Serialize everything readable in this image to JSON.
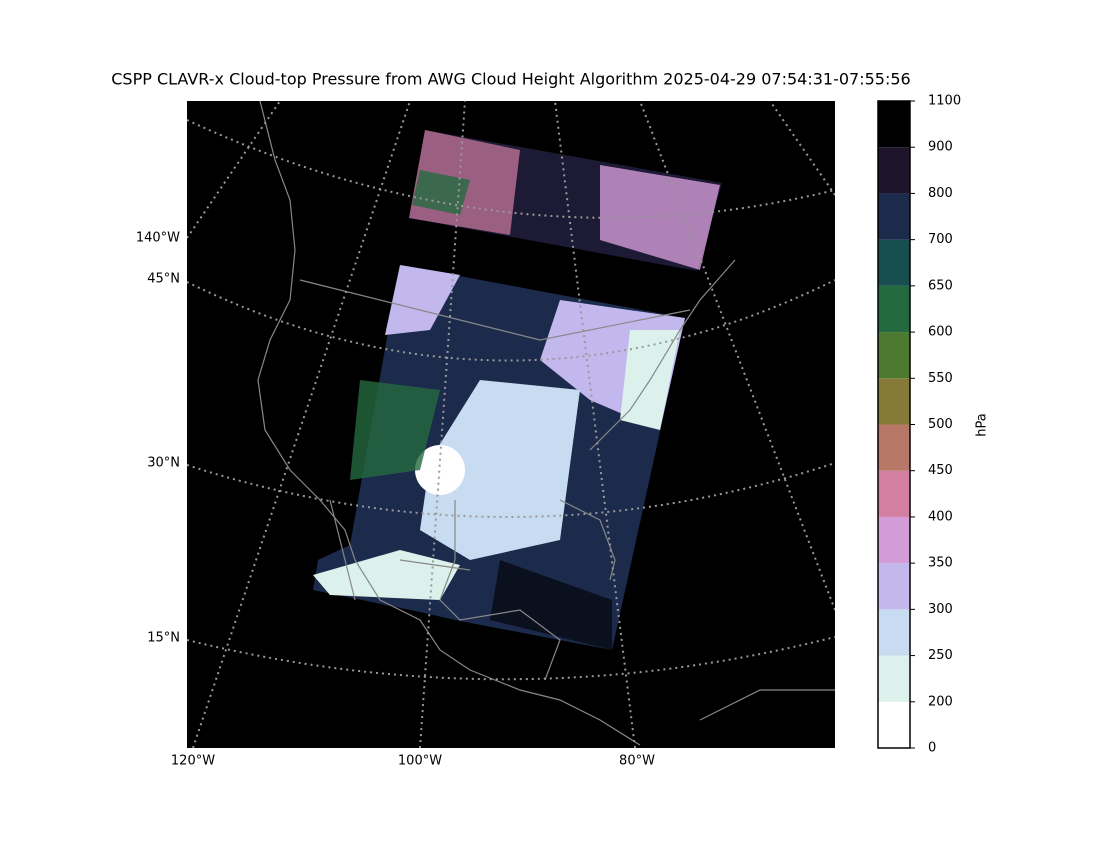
{
  "title": "CSPP CLAVR-x Cloud-top Pressure from AWG Cloud Height Algorithm 2025-04-29 07:54:31-07:55:56",
  "map": {
    "lon_labels": [
      "140°W",
      "120°W",
      "100°W",
      "80°W"
    ],
    "lat_labels": [
      "45°N",
      "30°N",
      "15°N"
    ]
  },
  "colorbar": {
    "label": "hPa",
    "ticks": [
      0,
      200,
      250,
      300,
      350,
      400,
      450,
      500,
      550,
      600,
      650,
      700,
      800,
      900,
      1100
    ],
    "colors": [
      "#ffffff",
      "#ddf1ec",
      "#c7dcf0",
      "#c3b8ee",
      "#d39bd8",
      "#d27fa2",
      "#b87868",
      "#877a38",
      "#4b7a30",
      "#246a40",
      "#184e50",
      "#1c2a4c",
      "#20142c",
      "#000000"
    ]
  }
}
